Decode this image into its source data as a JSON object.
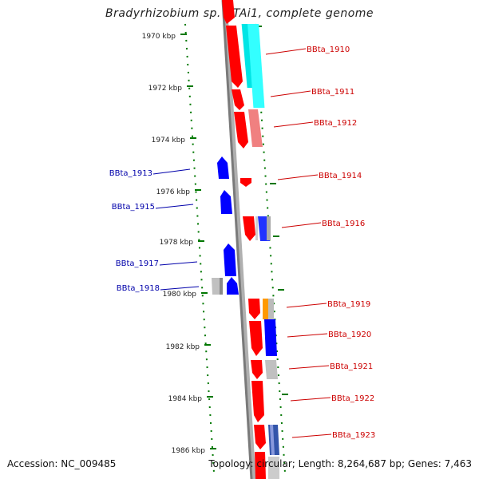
{
  "title": "Bradyrhizobium sp. BTAi1, complete genome",
  "accession": "Accession: NC_009485",
  "summary": "Topology: circular; Length: 8,264,687 bp; Genes: 7,463",
  "colors": {
    "forward_gene": "#ff0000",
    "reverse_gene": "#0000ff",
    "forward_label": "#cc0000",
    "reverse_label": "#0000aa",
    "backbone": "#888888",
    "scale": "#007700"
  },
  "scale_ticks": [
    {
      "label": "1970 kbp"
    },
    {
      "label": "1972 kbp"
    },
    {
      "label": "1974 kbp"
    },
    {
      "label": "1976 kbp"
    },
    {
      "label": "1978 kbp"
    },
    {
      "label": "1980 kbp"
    },
    {
      "label": "1982 kbp"
    },
    {
      "label": "1984 kbp"
    },
    {
      "label": "1986 kbp"
    }
  ],
  "forward_labels": [
    "BBta_1910",
    "BBta_1911",
    "BBta_1912",
    "BBta_1914",
    "BBta_1916",
    "BBta_1919",
    "BBta_1920",
    "BBta_1921",
    "BBta_1922",
    "BBta_1923"
  ],
  "reverse_labels": [
    "BBta_1913",
    "BBta_1915",
    "BBta_1917",
    "BBta_1918"
  ]
}
